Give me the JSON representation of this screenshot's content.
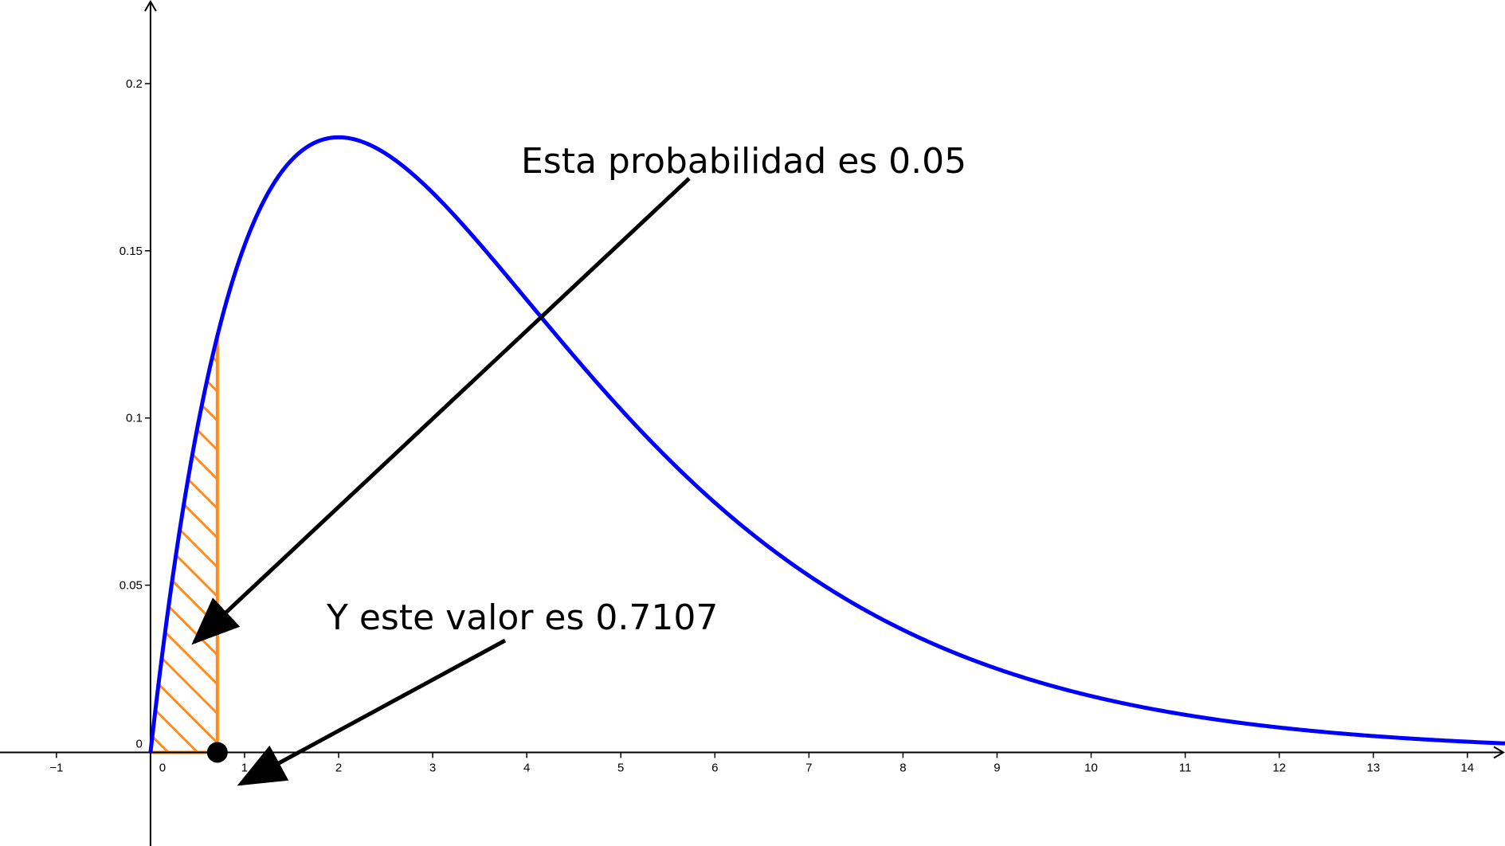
{
  "chart_data": {
    "type": "line",
    "title": "",
    "xlabel": "",
    "ylabel": "",
    "xlim": [
      -1.6,
      14.4
    ],
    "ylim": [
      -0.028,
      0.225
    ],
    "grid": false,
    "distribution": "chi-square",
    "degrees_of_freedom": 4,
    "x_ticks": [
      -1,
      0,
      1,
      2,
      3,
      4,
      5,
      6,
      7,
      8,
      9,
      10,
      11,
      12,
      13,
      14
    ],
    "x_tick_labels": [
      "−1",
      "0",
      "1",
      "2",
      "3",
      "4",
      "5",
      "6",
      "7",
      "8",
      "9",
      "10",
      "11",
      "12",
      "13",
      "14"
    ],
    "y_ticks": [
      0,
      0.05,
      0.1,
      0.15,
      0.2
    ],
    "y_tick_labels": [
      "0",
      "0.05",
      "0.1",
      "0.15",
      "0.2"
    ],
    "series": [
      {
        "color": "#0000ff",
        "x": [
          0,
          0.25,
          0.5,
          0.75,
          1,
          1.5,
          2,
          2.5,
          3,
          3.5,
          4,
          4.5,
          5,
          6,
          7,
          8,
          9,
          10,
          11,
          12,
          13,
          14
        ],
        "y": [
          0,
          0.0551,
          0.0974,
          0.1289,
          0.1516,
          0.1771,
          0.1839,
          0.1791,
          0.1673,
          0.1521,
          0.1353,
          0.1186,
          0.1026,
          0.0747,
          0.0528,
          0.0366,
          0.025,
          0.0168,
          0.0112,
          0.0074,
          0.0049,
          0.0032
        ]
      }
    ],
    "shaded_region": {
      "x_from": 0,
      "x_to": 0.7107,
      "color": "#ff8c1a",
      "pattern": "hatch"
    },
    "critical_point": {
      "x": 0.7107,
      "y": 0,
      "color": "#000000"
    },
    "annotations": [
      {
        "text": "Esta probabilidad es 0.05",
        "points_to": "shaded-region"
      },
      {
        "text": "Y este valor es 0.7107",
        "points_to": "critical-point"
      }
    ]
  }
}
